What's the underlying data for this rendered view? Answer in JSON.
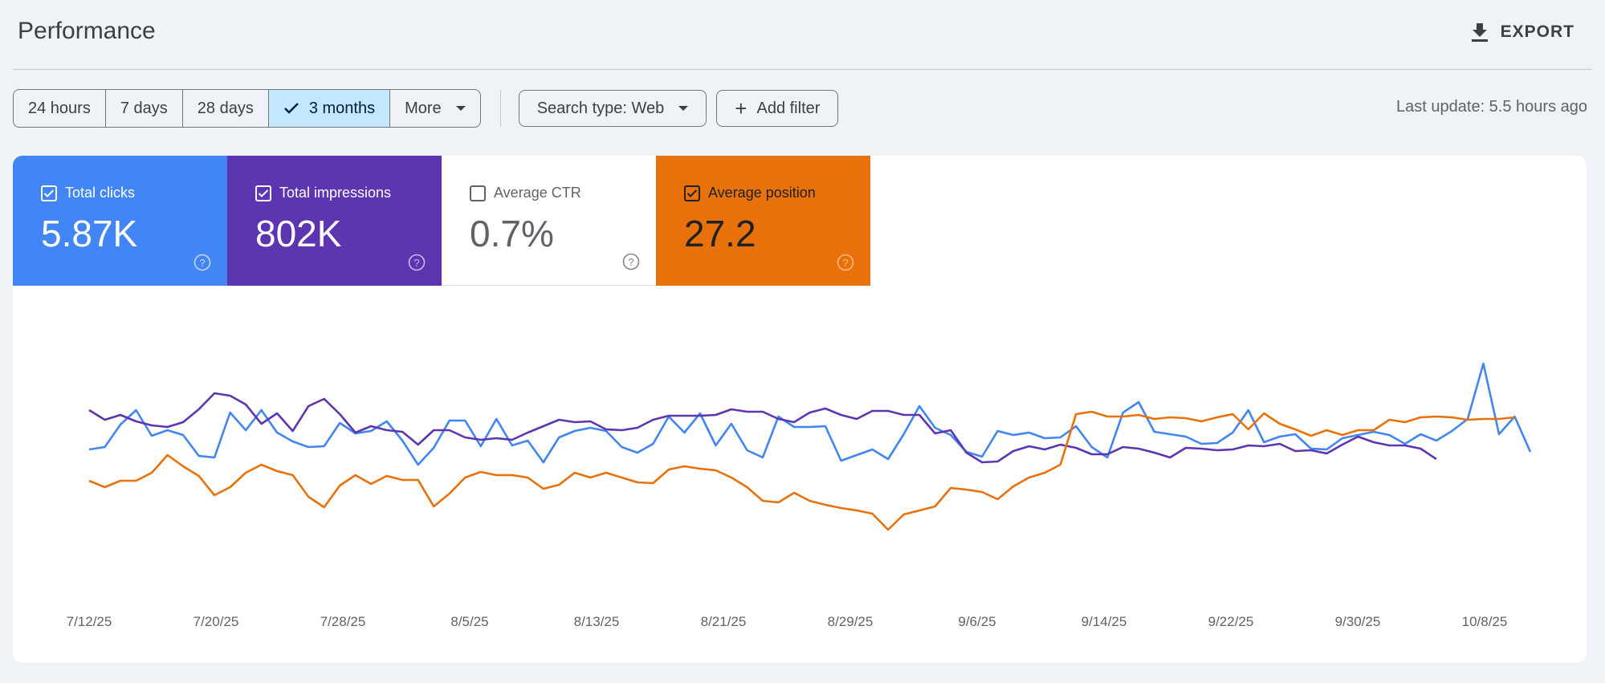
{
  "header": {
    "title": "Performance",
    "export_label": "EXPORT",
    "export_icon": "download-icon"
  },
  "filters": {
    "ranges": [
      {
        "label": "24 hours",
        "selected": false
      },
      {
        "label": "7 days",
        "selected": false
      },
      {
        "label": "28 days",
        "selected": false
      },
      {
        "label": "3 months",
        "selected": true
      },
      {
        "label": "More",
        "selected": false
      }
    ],
    "search_type_label": "Search type: Web",
    "add_filter_label": "Add filter",
    "last_update": "Last update: 5.5 hours ago"
  },
  "metrics": [
    {
      "label": "Total clicks",
      "value": "5.87K",
      "checked": true,
      "color": "#4285f4"
    },
    {
      "label": "Total impressions",
      "value": "802K",
      "checked": true,
      "color": "#5e35b1"
    },
    {
      "label": "Average CTR",
      "value": "0.7%",
      "checked": false,
      "color": "#ffffff"
    },
    {
      "label": "Average position",
      "value": "27.2",
      "checked": true,
      "color": "#e8710a"
    }
  ],
  "chart_data": {
    "type": "line",
    "x_tick_labels": [
      "7/12/25",
      "7/20/25",
      "7/28/25",
      "8/5/25",
      "8/13/25",
      "8/21/25",
      "8/29/25",
      "9/6/25",
      "9/14/25",
      "9/22/25",
      "9/30/25",
      "10/8/25"
    ],
    "x_start": "7/12/25",
    "grid": false,
    "legend": "none",
    "series": [
      {
        "metric": "Total clicks",
        "color": "#4285f4",
        "values": [
          9,
          12,
          40,
          58,
          26,
          33,
          27,
          1,
          -1,
          55,
          33,
          58,
          30,
          19,
          12,
          13,
          42,
          29,
          32,
          44,
          20,
          -10,
          11,
          45,
          45,
          13,
          47,
          14,
          20,
          -7,
          24,
          32,
          36,
          32,
          12,
          5,
          16,
          50,
          30,
          54,
          14,
          41,
          8,
          -1,
          50,
          37,
          37,
          38,
          -5,
          2,
          9,
          -3,
          28,
          63,
          36,
          27,
          6,
          0,
          32,
          27,
          30,
          23,
          24,
          38,
          12,
          -1,
          55,
          68,
          31,
          28,
          25,
          16,
          17,
          30,
          58,
          18,
          25,
          28,
          10,
          9,
          23,
          27,
          31,
          27,
          16,
          28,
          20,
          32,
          47,
          116,
          28,
          50,
          6
        ]
      },
      {
        "metric": "Total impressions",
        "color": "#5e35b1",
        "values": [
          58,
          46,
          52,
          44,
          39,
          37,
          43,
          59,
          79,
          76,
          65,
          41,
          54,
          32,
          63,
          72,
          53,
          30,
          38,
          33,
          31,
          15,
          33,
          33,
          24,
          21,
          23,
          21,
          30,
          38,
          46,
          43,
          44,
          34,
          33,
          36,
          46,
          51,
          51,
          51,
          52,
          59,
          56,
          56,
          47,
          43,
          55,
          60,
          52,
          47,
          57,
          57,
          52,
          52,
          29,
          33,
          5,
          -7,
          -6,
          7,
          13,
          9,
          15,
          11,
          3,
          3,
          12,
          10,
          5,
          -1,
          11,
          10,
          8,
          9,
          14,
          13,
          16,
          7,
          8,
          4,
          15,
          25,
          18,
          14,
          14,
          10,
          -3
        ]
      },
      {
        "metric": "Average position",
        "color": "#e8710a",
        "values": [
          -30,
          -38,
          -30,
          -30,
          -20,
          2,
          -12,
          -24,
          -48,
          -38,
          -20,
          -10,
          -18,
          -23,
          -50,
          -63,
          -36,
          -23,
          -34,
          -24,
          -29,
          -29,
          -62,
          -46,
          -26,
          -19,
          -23,
          -23,
          -26,
          -40,
          -35,
          -20,
          -26,
          -20,
          -26,
          -32,
          -33,
          -16,
          -12,
          -15,
          -17,
          -26,
          -38,
          -55,
          -57,
          -45,
          -55,
          -60,
          -64,
          -67,
          -71,
          -91,
          -72,
          -67,
          -62,
          -39,
          -41,
          -44,
          -53,
          -37,
          -26,
          -20,
          -10,
          53,
          56,
          50,
          50,
          52,
          47,
          49,
          48,
          44,
          49,
          53,
          34,
          54,
          41,
          34,
          26,
          33,
          27,
          33,
          33,
          46,
          43,
          49,
          50,
          49,
          46,
          47,
          47,
          49
        ]
      }
    ]
  }
}
